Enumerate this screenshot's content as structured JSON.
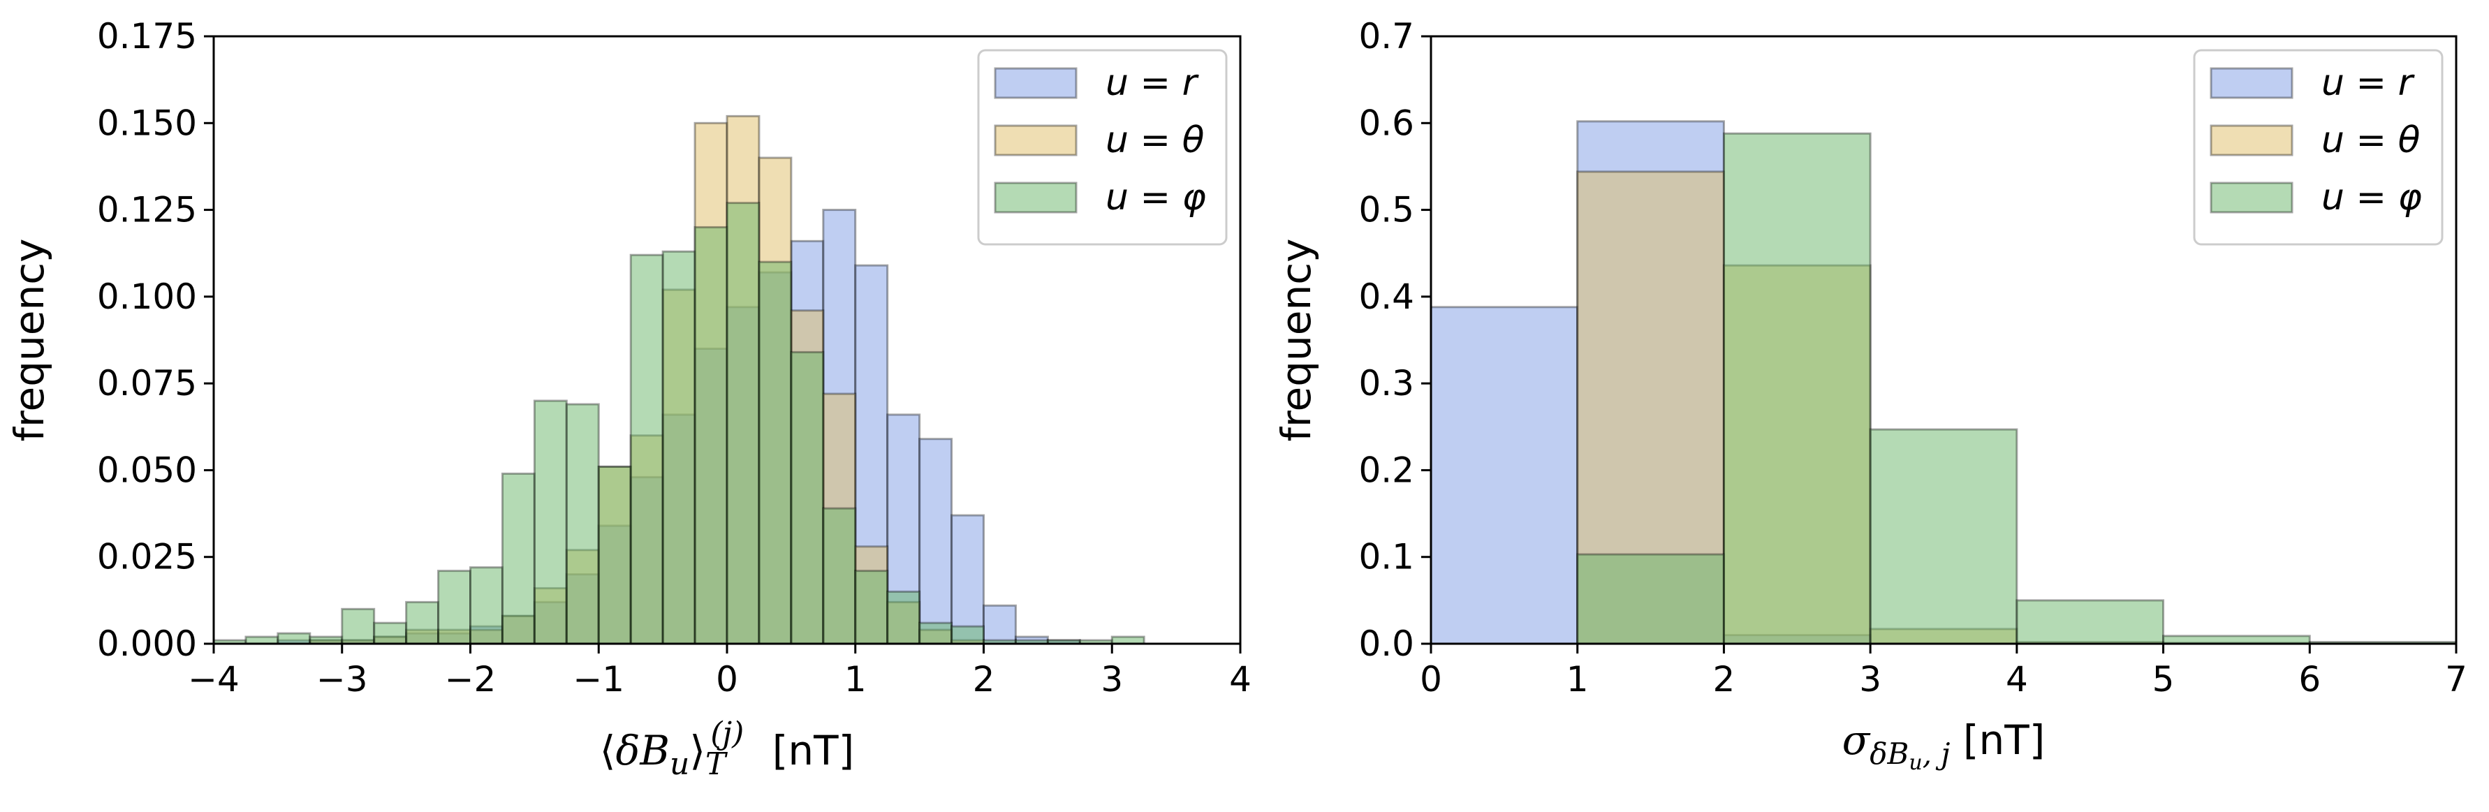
{
  "colors": {
    "r": "#7f9ee6",
    "theta": "#e0bd67",
    "phi": "#6ab66a",
    "bar_edge": "#000000"
  },
  "chart_data": [
    {
      "type": "bar",
      "subtype": "histogram-overlay",
      "xlabel": "⟨δB_u⟩_T^(j) [nT]",
      "ylabel": "frequency",
      "xlim": [
        -4,
        4
      ],
      "ylim": [
        0,
        0.175
      ],
      "xticks": [
        "−4",
        "−3",
        "−2",
        "−1",
        "0",
        "1",
        "2",
        "3",
        "4"
      ],
      "yticks": [
        "0.000",
        "0.025",
        "0.050",
        "0.075",
        "0.100",
        "0.125",
        "0.150",
        "0.175"
      ],
      "legend_position": "top-right",
      "bin_width": 0.25,
      "series": [
        {
          "name": "u = r",
          "key": "r",
          "bin_starts": [
            -3.5,
            -3.25,
            -3.0,
            -2.75,
            -2.5,
            -2.25,
            -2.0,
            -1.75,
            -1.5,
            -1.25,
            -1.0,
            -0.75,
            -0.5,
            -0.25,
            0.0,
            0.25,
            0.5,
            0.75,
            1.0,
            1.25,
            1.5,
            1.75,
            2.0,
            2.25,
            2.5
          ],
          "values": [
            0.001,
            0.001,
            0.001,
            0.002,
            0.003,
            0.003,
            0.005,
            0.008,
            0.012,
            0.02,
            0.034,
            0.048,
            0.066,
            0.085,
            0.097,
            0.107,
            0.116,
            0.125,
            0.109,
            0.066,
            0.059,
            0.037,
            0.011,
            0.002,
            0.001
          ]
        },
        {
          "name": "u = θ",
          "key": "theta",
          "bin_starts": [
            -3.25,
            -3.0,
            -2.75,
            -2.5,
            -2.25,
            -2.0,
            -1.75,
            -1.5,
            -1.25,
            -1.0,
            -0.75,
            -0.5,
            -0.25,
            0.0,
            0.25,
            0.5,
            0.75,
            1.0,
            1.25,
            1.5,
            1.75
          ],
          "values": [
            0.001,
            0.001,
            0.002,
            0.004,
            0.004,
            0.004,
            0.008,
            0.016,
            0.027,
            0.051,
            0.06,
            0.102,
            0.15,
            0.152,
            0.14,
            0.096,
            0.072,
            0.028,
            0.012,
            0.004,
            0.001
          ],
          "note": ""
        },
        {
          "name": "u = φ",
          "key": "phi",
          "bin_starts": [
            -4.0,
            -3.75,
            -3.5,
            -3.25,
            -3.0,
            -2.75,
            -2.5,
            -2.25,
            -2.0,
            -1.75,
            -1.5,
            -1.25,
            -1.0,
            -0.75,
            -0.5,
            -0.25,
            0.0,
            0.25,
            0.5,
            0.75,
            1.0,
            1.25,
            1.5,
            1.75,
            2.0,
            2.25,
            2.5,
            2.75,
            3.0
          ],
          "values": [
            0.001,
            0.002,
            0.003,
            0.002,
            0.01,
            0.006,
            0.012,
            0.021,
            0.022,
            0.049,
            0.07,
            0.069,
            0.051,
            0.112,
            0.113,
            0.12,
            0.127,
            0.11,
            0.084,
            0.039,
            0.021,
            0.015,
            0.006,
            0.005,
            0.001,
            0.001,
            0.001,
            0.001,
            0.002
          ]
        }
      ]
    },
    {
      "type": "bar",
      "subtype": "histogram-overlay",
      "xlabel": "σ_δB_u,j [nT]",
      "ylabel": "frequency",
      "xlim": [
        0,
        7
      ],
      "ylim": [
        0,
        0.7
      ],
      "xticks": [
        "0",
        "1",
        "2",
        "3",
        "4",
        "5",
        "6",
        "7"
      ],
      "yticks": [
        "0.0",
        "0.1",
        "0.2",
        "0.3",
        "0.4",
        "0.5",
        "0.6",
        "0.7"
      ],
      "legend_position": "top-right",
      "bin_width": 1,
      "series": [
        {
          "name": "u = r",
          "key": "r",
          "bin_starts": [
            0,
            1,
            2,
            3,
            4,
            5,
            6
          ],
          "values": [
            0.388,
            0.602,
            0.01,
            0.0,
            0.0,
            0.0,
            0.0
          ]
        },
        {
          "name": "u = θ",
          "key": "theta",
          "bin_starts": [
            0,
            1,
            2,
            3,
            4,
            5,
            6
          ],
          "values": [
            0.0,
            0.544,
            0.436,
            0.017,
            0.002,
            0.001,
            0.0
          ]
        },
        {
          "name": "u = φ",
          "key": "phi",
          "bin_starts": [
            0,
            1,
            2,
            3,
            4,
            5,
            6
          ],
          "values": [
            0.0,
            0.103,
            0.588,
            0.247,
            0.05,
            0.009,
            0.002
          ]
        }
      ]
    }
  ]
}
